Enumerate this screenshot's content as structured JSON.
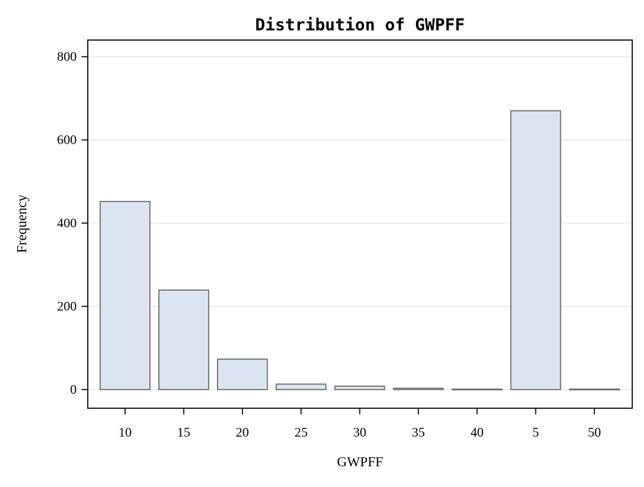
{
  "chart_data": {
    "type": "bar",
    "title": "Distribution of GWPFF",
    "xlabel": "GWPFF",
    "ylabel": "Frequency",
    "categories": [
      "10",
      "15",
      "20",
      "25",
      "30",
      "35",
      "40",
      "5",
      "50"
    ],
    "values": [
      452,
      239,
      73,
      13,
      8,
      3,
      1,
      670,
      1
    ],
    "ylim": [
      -45,
      840
    ],
    "yticks": [
      0,
      200,
      400,
      600,
      800
    ],
    "grid": true,
    "legend": "none",
    "colors": {
      "bar_fill": "#dbe5f1",
      "bar_stroke": "#6b6b6b"
    }
  }
}
